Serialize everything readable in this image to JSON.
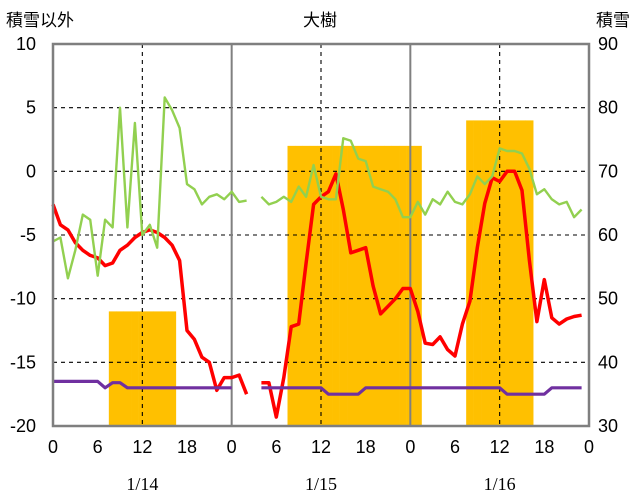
{
  "chart_data": {
    "type": "line",
    "title": "大樹",
    "left_axis_label": "積雪以外",
    "right_axis_label": "積雪",
    "left_axis": {
      "min": -20,
      "max": 10,
      "ticks": [
        "10",
        "5",
        "0",
        "-5",
        "-10",
        "-15",
        "-20"
      ]
    },
    "right_axis": {
      "min": 30,
      "max": 90,
      "ticks": [
        "90",
        "80",
        "70",
        "60",
        "50",
        "40",
        "30"
      ]
    },
    "x_tick_labels": [
      "0",
      "6",
      "12",
      "18",
      "0",
      "6",
      "12",
      "18",
      "0",
      "6",
      "12",
      "18",
      "0"
    ],
    "date_labels": [
      "1/14",
      "1/15",
      "1/16"
    ],
    "grid": true,
    "bar_color": "#FFC000",
    "colors": {
      "red": "#FF0000",
      "green": "#92D050",
      "purple": "#7030A0",
      "bars": "#FFC000"
    },
    "bars_snow_depth": {
      "axis": "right",
      "hours": [
        [
          8,
          9,
          10,
          11,
          12,
          13,
          14,
          15,
          16
        ],
        [
          32,
          33,
          34,
          35,
          36,
          37,
          38,
          39,
          40,
          41,
          42,
          43,
          44,
          45,
          46,
          47,
          48,
          49
        ],
        [
          56,
          57,
          58,
          59,
          60,
          61,
          62,
          63,
          64
        ]
      ],
      "values": [
        [
          48,
          48,
          48,
          48,
          48,
          48,
          48,
          48,
          48
        ],
        [
          74,
          74,
          74,
          74,
          74,
          74,
          74,
          74,
          74,
          74,
          74,
          74,
          74,
          74,
          74,
          74,
          74,
          74
        ],
        [
          78,
          78,
          78,
          78,
          78,
          78,
          78,
          78,
          78
        ]
      ]
    },
    "series": [
      {
        "color_name": "red",
        "axis": "left",
        "segments": [
          {
            "x": [
              0,
              1,
              2,
              3,
              4,
              5,
              6,
              7,
              8,
              9,
              10,
              11,
              12,
              13,
              14,
              15,
              16,
              17,
              18,
              19,
              20,
              21,
              22,
              23,
              24,
              25,
              26
            ],
            "y": [
              -2.6,
              -4.2,
              -4.6,
              -5.6,
              -6.2,
              -6.6,
              -6.8,
              -7.4,
              -7.2,
              -6.2,
              -5.8,
              -5.2,
              -4.8,
              -4.6,
              -4.8,
              -5.2,
              -5.8,
              -7.0,
              -12.5,
              -13.2,
              -14.6,
              -15.0,
              -17.2,
              -16.2,
              -16.2,
              -16.0,
              -17.5
            ]
          },
          {
            "x": [
              28,
              29,
              30,
              31,
              32,
              33,
              34,
              35,
              36,
              37,
              38,
              39,
              40,
              41,
              42,
              43,
              44,
              45,
              46,
              47,
              48,
              49,
              50,
              51,
              52,
              53,
              54,
              55,
              56,
              57,
              58,
              59,
              60,
              61,
              62,
              63,
              64,
              65,
              66,
              67,
              68,
              69,
              70,
              71
            ],
            "y": [
              -16.6,
              -16.6,
              -19.3,
              -16.2,
              -12.2,
              -12.0,
              -7.2,
              -2.6,
              -2.0,
              -1.6,
              -0.2,
              -3.0,
              -6.4,
              -6.2,
              -6.0,
              -9.0,
              -11.2,
              -10.6,
              -10.0,
              -9.2,
              -9.2,
              -11.0,
              -13.5,
              -13.6,
              -13.0,
              -14.0,
              -14.5,
              -12.0,
              -10.2,
              -6.0,
              -2.5,
              -0.5,
              -0.8,
              0.0,
              0.0,
              -1.5,
              -7.0,
              -11.8,
              -8.5,
              -11.5,
              -12.0,
              -11.6,
              -11.4,
              -11.3
            ]
          }
        ]
      },
      {
        "color_name": "green",
        "axis": "left",
        "segments": [
          {
            "x": [
              0,
              1,
              2,
              3,
              4,
              5,
              6,
              7,
              8,
              9,
              10,
              11,
              12,
              13,
              14,
              15,
              16,
              17,
              18,
              19,
              20,
              21,
              22,
              23,
              24,
              25,
              26
            ],
            "y": [
              -5.5,
              -5.2,
              -8.4,
              -6.2,
              -3.4,
              -3.8,
              -8.2,
              -3.8,
              -4.4,
              5.0,
              -4.4,
              3.8,
              -5.0,
              -4.2,
              -6.0,
              5.8,
              4.8,
              3.4,
              -1.0,
              -1.4,
              -2.6,
              -2.0,
              -1.8,
              -2.2,
              -1.6,
              -2.4,
              -2.3
            ]
          },
          {
            "x": [
              28,
              29,
              30,
              31,
              32,
              33,
              34,
              35,
              36,
              37,
              38,
              39,
              40,
              41,
              42,
              43,
              44,
              45,
              46,
              47,
              48,
              49,
              50,
              51,
              52,
              53,
              54,
              55,
              56,
              57,
              58,
              59,
              60,
              61,
              62,
              63,
              64,
              65,
              66,
              67,
              68,
              69,
              70,
              71
            ],
            "y": [
              -2.0,
              -2.6,
              -2.4,
              -2.0,
              -2.4,
              -1.2,
              -2.0,
              0.5,
              -2.0,
              -2.2,
              -2.2,
              2.6,
              2.4,
              1.0,
              0.8,
              -1.2,
              -1.4,
              -1.6,
              -2.2,
              -3.6,
              -3.6,
              -2.4,
              -3.4,
              -2.2,
              -2.6,
              -1.6,
              -2.4,
              -2.6,
              -1.8,
              -0.4,
              -1.0,
              -0.4,
              1.8,
              1.6,
              1.6,
              1.4,
              0.2,
              -1.8,
              -1.4,
              -2.2,
              -2.6,
              -2.4,
              -3.6,
              -3.0
            ]
          }
        ]
      },
      {
        "color_name": "purple",
        "axis": "left",
        "segments": [
          {
            "x": [
              0,
              6,
              7,
              8,
              9,
              10,
              11,
              12,
              24
            ],
            "y": [
              -16.5,
              -16.5,
              -17.0,
              -16.6,
              -16.6,
              -17.0,
              -17.0,
              -17.0,
              -17.0
            ]
          },
          {
            "x": [
              28,
              36,
              37,
              41,
              42,
              50,
              60,
              61,
              66,
              67,
              71
            ],
            "y": [
              -17.0,
              -17.0,
              -17.5,
              -17.5,
              -17.0,
              -17.0,
              -17.0,
              -17.5,
              -17.5,
              -17.0,
              -17.0
            ]
          }
        ]
      }
    ]
  }
}
